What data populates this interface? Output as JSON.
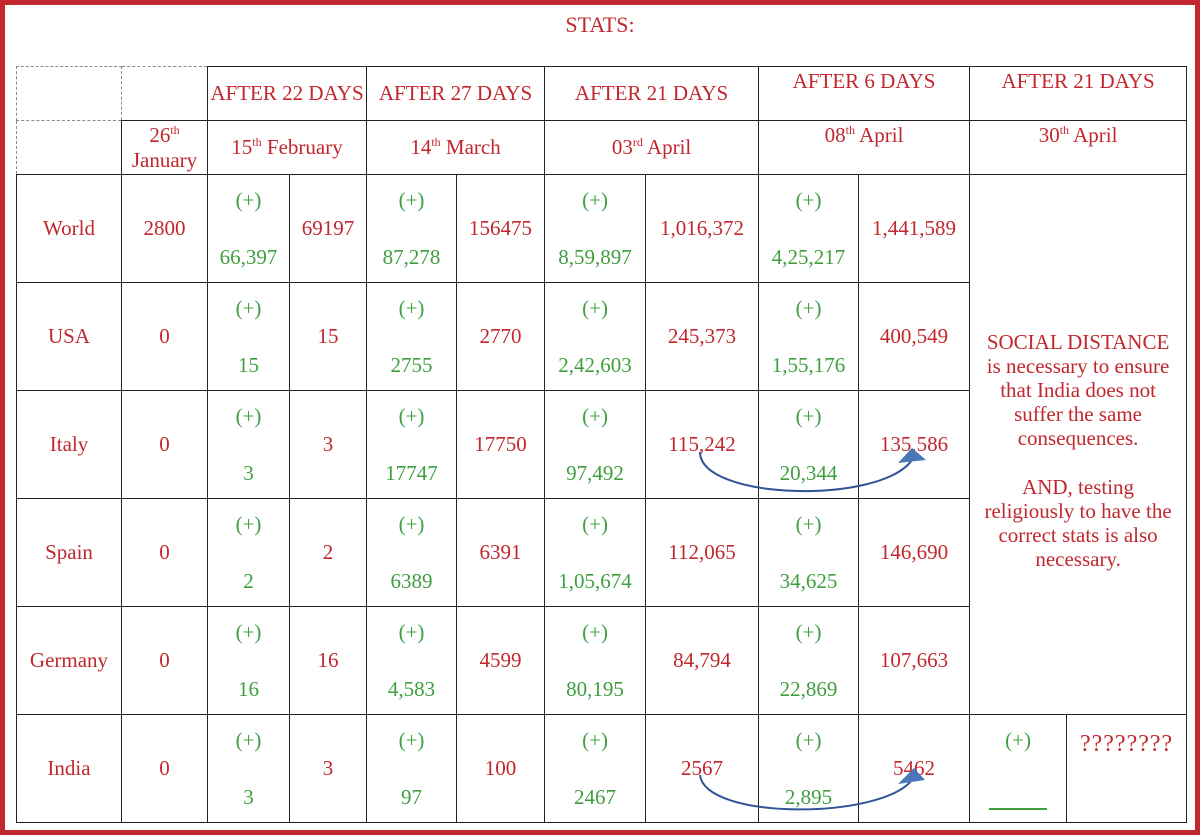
{
  "title": "STATS:",
  "periods": [
    {
      "label": "AFTER 22 DAYS",
      "date_day": "15",
      "date_sup": "th",
      "date_rest": "February"
    },
    {
      "label": "AFTER 27 DAYS",
      "date_day": "14",
      "date_sup": "th",
      "date_rest": "March"
    },
    {
      "label": "AFTER 21 DAYS",
      "date_day": "03",
      "date_sup": "rd",
      "date_rest": "April"
    },
    {
      "label": "AFTER 6 DAYS",
      "date_day": "08",
      "date_sup": "th",
      "date_rest": "April"
    },
    {
      "label": "AFTER 21 DAYS",
      "date_day": "30",
      "date_sup": "th",
      "date_rest": "April"
    }
  ],
  "start_date": {
    "day": "26",
    "sup": "th",
    "month": "January"
  },
  "plus_label": "(+)",
  "rows": [
    {
      "country": "World",
      "start": "2800",
      "cells": [
        [
          "66,397",
          "69197"
        ],
        [
          "87,278",
          "156475"
        ],
        [
          "8,59,897",
          "1,016,372"
        ],
        [
          "4,25,217",
          "1,441,589"
        ]
      ]
    },
    {
      "country": "USA",
      "start": "0",
      "cells": [
        [
          "15",
          "15"
        ],
        [
          "2755",
          "2770"
        ],
        [
          "2,42,603",
          "245,373"
        ],
        [
          "1,55,176",
          "400,549"
        ]
      ]
    },
    {
      "country": "Italy",
      "start": "0",
      "cells": [
        [
          "3",
          "3"
        ],
        [
          "17747",
          "17750"
        ],
        [
          "97,492",
          "115,242"
        ],
        [
          "20,344",
          "135,586"
        ]
      ]
    },
    {
      "country": "Spain",
      "start": "0",
      "cells": [
        [
          "2",
          "2"
        ],
        [
          "6389",
          "6391"
        ],
        [
          "1,05,674",
          "112,065"
        ],
        [
          "34,625",
          "146,690"
        ]
      ]
    },
    {
      "country": "Germany",
      "start": "0",
      "cells": [
        [
          "16",
          "16"
        ],
        [
          "4,583",
          "4599"
        ],
        [
          "80,195",
          "84,794"
        ],
        [
          "22,869",
          "107,663"
        ]
      ]
    },
    {
      "country": "India",
      "start": "0",
      "cells": [
        [
          "3",
          "3"
        ],
        [
          "97",
          "100"
        ],
        [
          "2467",
          "2567"
        ],
        [
          "2,895",
          "5462"
        ]
      ]
    }
  ],
  "note_lines": [
    "SOCIAL DISTANCE",
    "is necessary to ensure",
    "that India does not",
    "suffer the same",
    "consequences.",
    "",
    "AND, testing",
    "religiously to have the",
    "correct stats is also",
    "necessary."
  ],
  "india_future": {
    "plus": "(+)",
    "total": "????????"
  }
}
